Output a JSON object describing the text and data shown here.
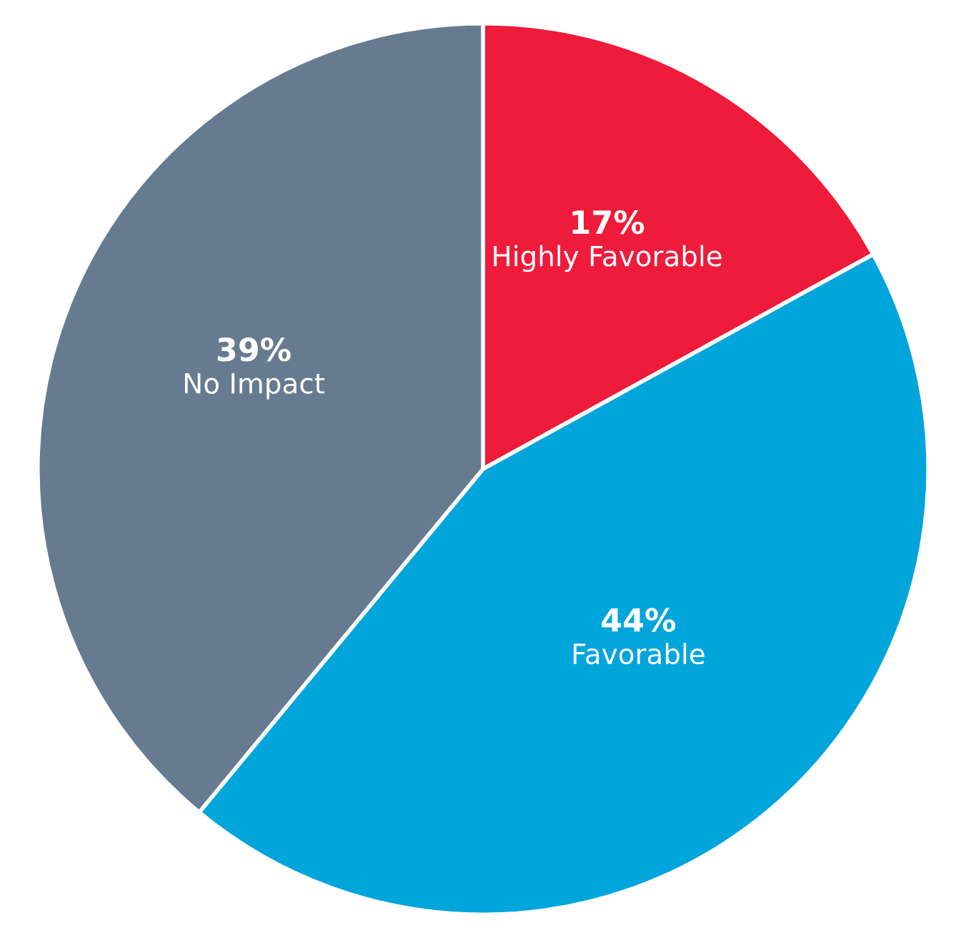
{
  "chart_data": {
    "type": "pie",
    "categories": [
      "Highly Favorable",
      "Favorable",
      "No Impact"
    ],
    "values": [
      17,
      44,
      39
    ],
    "value_labels": [
      "17%",
      "44%",
      "39%"
    ],
    "colors": [
      "#ee1b3b",
      "#00a5dc",
      "#667b8f"
    ],
    "legend": false
  }
}
